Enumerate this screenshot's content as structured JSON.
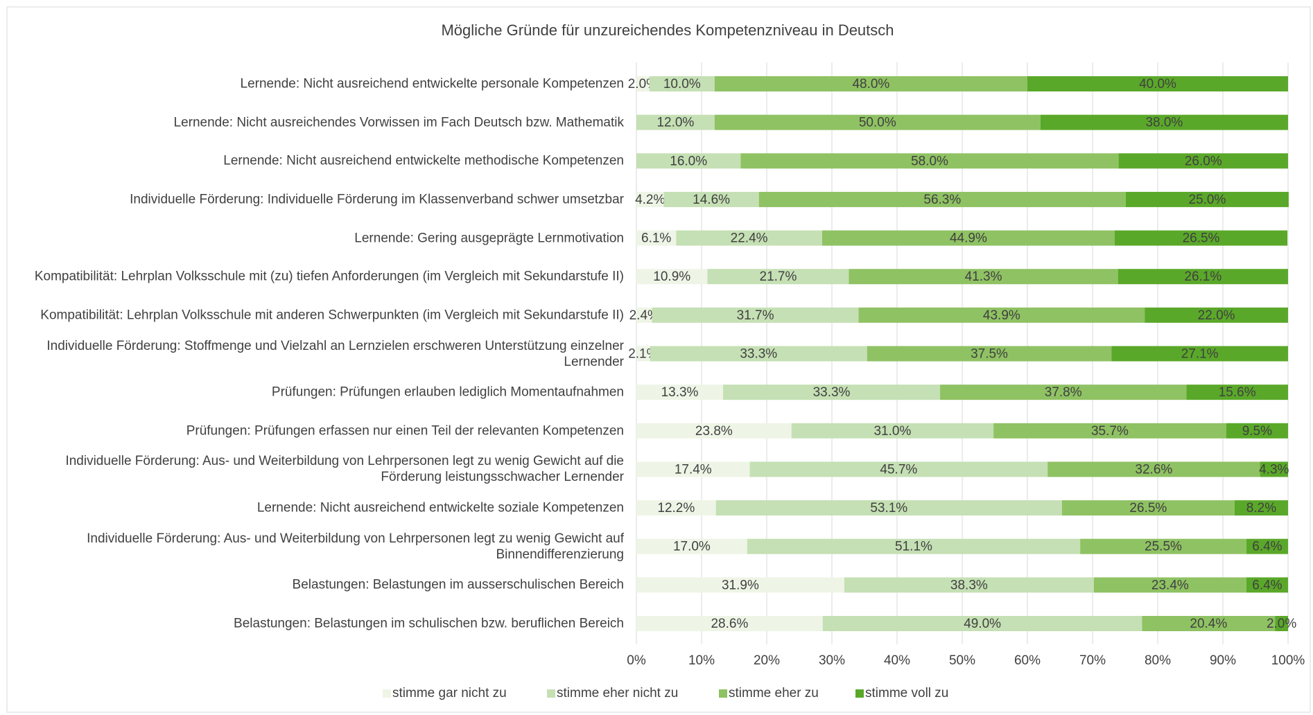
{
  "chart_data": {
    "type": "stacked_barh",
    "title": "Mögliche Gründe für unzureichendes Kompetenzniveau in Deutsch",
    "categories": [
      "Lernende: Nicht ausreichend entwickelte personale Kompetenzen",
      "Lernende: Nicht ausreichendes Vorwissen im Fach Deutsch bzw. Mathematik",
      "Lernende: Nicht ausreichend entwickelte methodische Kompetenzen",
      "Individuelle Förderung: Individuelle Förderung im Klassenverband schwer umsetzbar",
      "Lernende: Gering ausgeprägte Lernmotivation",
      "Kompatibilität: Lehrplan Volksschule mit (zu) tiefen Anforderungen (im Vergleich mit Sekundarstufe II)",
      "Kompatibilität: Lehrplan Volksschule mit anderen Schwerpunkten (im Vergleich mit Sekundarstufe II)",
      "Individuelle Förderung: Stoffmenge und Vielzahl an Lernzielen erschweren Unterstützung einzelner Lernender",
      "Prüfungen: Prüfungen erlauben lediglich Momentaufnahmen",
      "Prüfungen: Prüfungen erfassen nur einen Teil der relevanten Kompetenzen",
      "Individuelle Förderung: Aus- und Weiterbildung von Lehrpersonen legt zu wenig Gewicht auf die Förderung leistungsschwacher Lernender",
      "Lernende: Nicht ausreichend entwickelte soziale Kompetenzen",
      "Individuelle Förderung: Aus- und Weiterbildung von Lehrpersonen legt zu wenig Gewicht auf Binnendifferenzierung",
      "Belastungen: Belastungen im ausserschulischen Bereich",
      "Belastungen: Belastungen im schulischen bzw. beruflichen Bereich"
    ],
    "series": [
      {
        "name": "stimme gar nicht zu",
        "color": "#eef5e6",
        "values": [
          2.0,
          0,
          0,
          4.2,
          6.1,
          10.9,
          2.4,
          2.1,
          13.3,
          23.8,
          17.4,
          12.2,
          17.0,
          31.9,
          28.6
        ],
        "value_labels": [
          "2.0%",
          null,
          null,
          "4.2%",
          "6.1%",
          "10.9%",
          "2.4%",
          "2.1%",
          "13.3%",
          "23.8%",
          "17.4%",
          "12.2%",
          "17.0%",
          "31.9%",
          "28.6%"
        ]
      },
      {
        "name": "stimme eher nicht zu",
        "color": "#c5e0b4",
        "values": [
          10.0,
          12.0,
          16.0,
          14.6,
          22.4,
          21.7,
          31.7,
          33.3,
          33.3,
          31.0,
          45.7,
          53.1,
          51.1,
          38.3,
          49.0
        ],
        "value_labels": [
          "10.0%",
          "12.0%",
          "16.0%",
          "14.6%",
          "22.4%",
          "21.7%",
          "31.7%",
          "33.3%",
          "33.3%",
          "31.0%",
          "45.7%",
          "53.1%",
          "51.1%",
          "38.3%",
          "49.0%"
        ]
      },
      {
        "name": "stimme eher zu",
        "color": "#8fc263",
        "values": [
          48.0,
          50.0,
          58.0,
          56.3,
          44.9,
          41.3,
          43.9,
          37.5,
          37.8,
          35.7,
          32.6,
          26.5,
          25.5,
          23.4,
          20.4
        ],
        "value_labels": [
          "48.0%",
          "50.0%",
          "58.0%",
          "56.3%",
          "44.9%",
          "41.3%",
          "43.9%",
          "37.5%",
          "37.8%",
          "35.7%",
          "32.6%",
          "26.5%",
          "25.5%",
          "23.4%",
          "20.4%"
        ]
      },
      {
        "name": "stimme voll zu",
        "color": "#5aa829",
        "values": [
          40.0,
          38.0,
          26.0,
          25.0,
          26.5,
          26.1,
          22.0,
          27.1,
          15.6,
          9.5,
          4.3,
          8.2,
          6.4,
          6.4,
          2.0
        ],
        "value_labels": [
          "40.0%",
          "38.0%",
          "26.0%",
          "25.0%",
          "26.5%",
          "26.1%",
          "22.0%",
          "27.1%",
          "15.6%",
          "9.5%",
          "4.3%",
          "8.2%",
          "6.4%",
          "6.4%",
          "2.0%"
        ]
      }
    ],
    "xlim": [
      0,
      100
    ],
    "xticks": [
      {
        "value": 0,
        "label": "0%"
      },
      {
        "value": 10,
        "label": "10%"
      },
      {
        "value": 20,
        "label": "20%"
      },
      {
        "value": 30,
        "label": "30%"
      },
      {
        "value": 40,
        "label": "40%"
      },
      {
        "value": 50,
        "label": "50%"
      },
      {
        "value": 60,
        "label": "60%"
      },
      {
        "value": 70,
        "label": "70%"
      },
      {
        "value": 80,
        "label": "80%"
      },
      {
        "value": 90,
        "label": "90%"
      },
      {
        "value": 100,
        "label": "100%"
      }
    ],
    "grid": true,
    "legend": "bottom"
  }
}
